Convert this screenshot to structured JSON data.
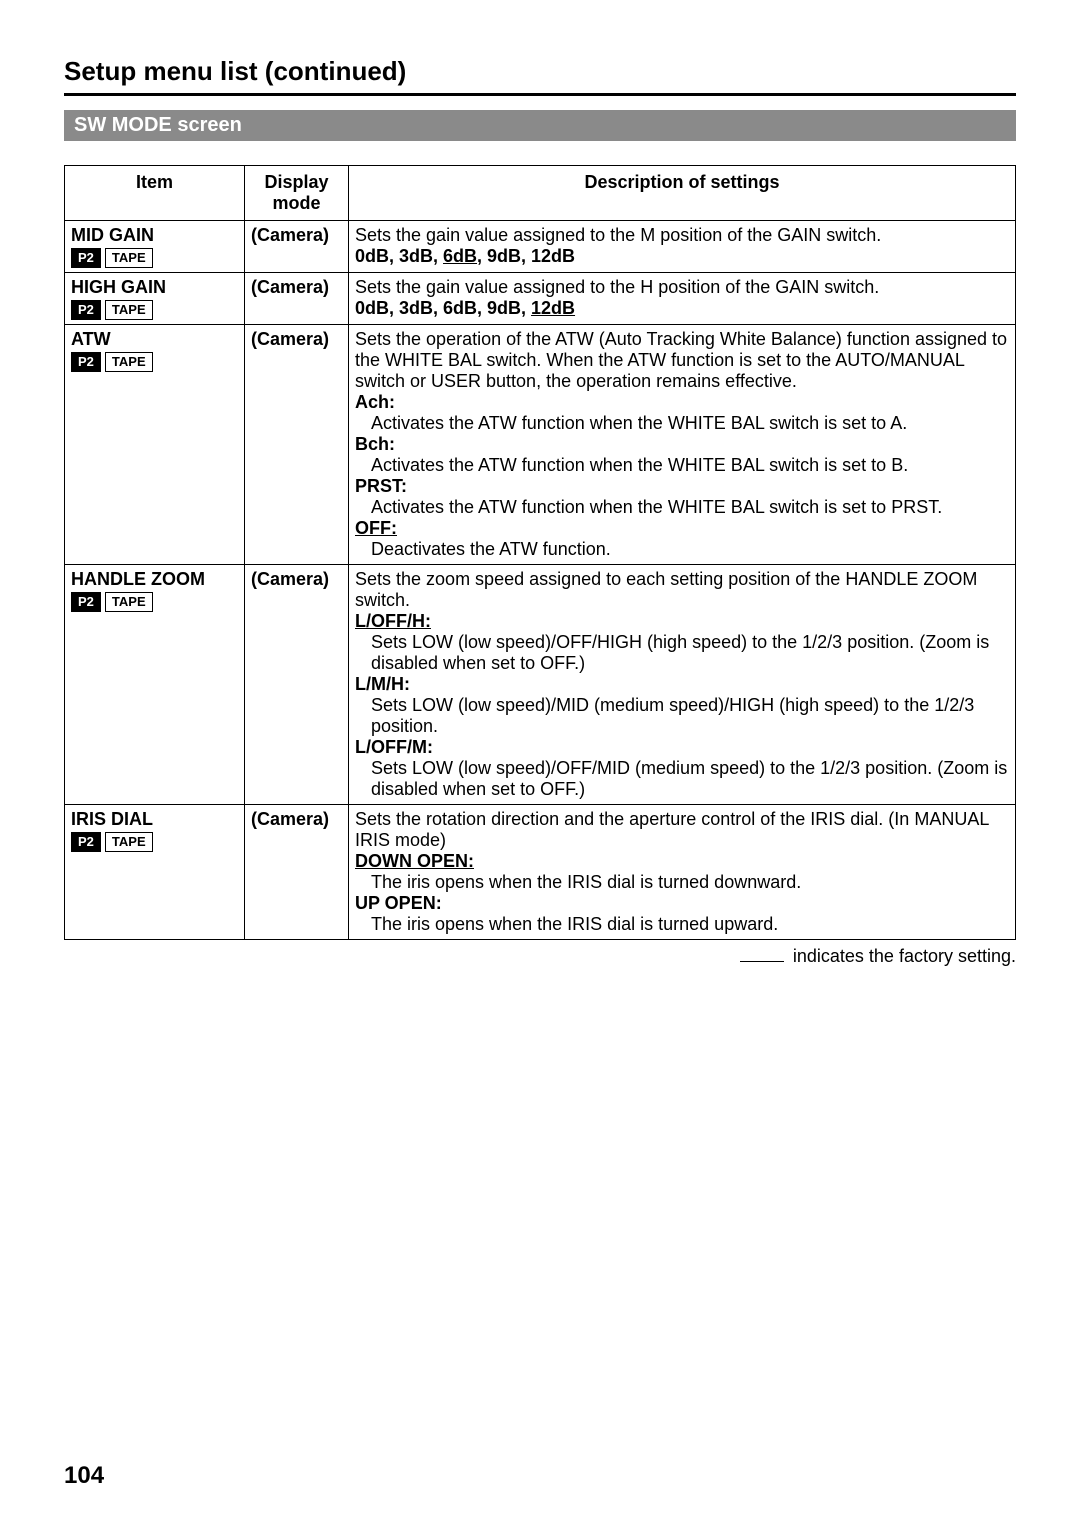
{
  "page": {
    "title": "Setup menu list (continued)",
    "section_header": "SW MODE screen",
    "page_number": "104",
    "footnote_text": " indicates the factory setting."
  },
  "table": {
    "headers": {
      "item": "Item",
      "mode": "Display mode",
      "desc": "Description of settings"
    },
    "badges": {
      "p2": "P2",
      "tape": "TAPE"
    },
    "rows": [
      {
        "item": "MID GAIN",
        "mode": "(Camera)",
        "lines": [
          {
            "t": "Sets the gain value assigned to the M position of the GAIN switch."
          },
          {
            "opts": [
              {
                "t": "0dB, 3dB, ",
                "b": true
              },
              {
                "t": "6dB",
                "b": true,
                "u": true
              },
              {
                "t": ", 9dB, 12dB",
                "b": true
              }
            ]
          }
        ]
      },
      {
        "item": "HIGH GAIN",
        "mode": "(Camera)",
        "lines": [
          {
            "t": "Sets the gain value assigned to the H position of the GAIN switch."
          },
          {
            "opts": [
              {
                "t": "0dB, 3dB, 6dB, 9dB, ",
                "b": true
              },
              {
                "t": "12dB",
                "b": true,
                "u": true
              }
            ]
          }
        ]
      },
      {
        "item": "ATW",
        "mode": "(Camera)",
        "lines": [
          {
            "t": "Sets the operation of the ATW (Auto Tracking White Balance) function assigned to the WHITE BAL switch. When the ATW function is set to the AUTO/MANUAL switch or USER button, the operation remains effective."
          },
          {
            "t": "Ach:",
            "b": true
          },
          {
            "t": "Activates the ATW function when the WHITE BAL switch is set to A.",
            "i": 1
          },
          {
            "t": "Bch:",
            "b": true
          },
          {
            "t": "Activates the ATW function when the WHITE BAL switch is set to B.",
            "i": 1
          },
          {
            "t": "PRST:",
            "b": true
          },
          {
            "t": "Activates the ATW function when the WHITE BAL switch is set to PRST.",
            "i": 1
          },
          {
            "t": "OFF:",
            "b": true,
            "u": true
          },
          {
            "t": "Deactivates the ATW function.",
            "i": 1
          }
        ]
      },
      {
        "item": "HANDLE ZOOM",
        "mode": "(Camera)",
        "lines": [
          {
            "t": "Sets the zoom speed assigned to each setting position of the HANDLE ZOOM switch."
          },
          {
            "t": "L/OFF/H:",
            "b": true,
            "u": true
          },
          {
            "t": "Sets LOW (low speed)/OFF/HIGH (high speed) to the 1/2/3 position. (Zoom is disabled when set to OFF.)",
            "i": 1
          },
          {
            "t": "L/M/H:",
            "b": true
          },
          {
            "t": "Sets LOW (low speed)/MID (medium speed)/HIGH (high speed) to the 1/2/3 position.",
            "i": 1
          },
          {
            "t": "L/OFF/M:",
            "b": true
          },
          {
            "t": "Sets LOW (low speed)/OFF/MID (medium speed) to the 1/2/3 position. (Zoom is disabled when set to OFF.)",
            "i": 1
          }
        ]
      },
      {
        "item": "IRIS DIAL",
        "mode": "(Camera)",
        "lines": [
          {
            "t": "Sets the rotation direction and the aperture control of the IRIS dial. (In MANUAL IRIS mode)"
          },
          {
            "t": "DOWN OPEN:",
            "b": true,
            "u": true
          },
          {
            "t": "The iris opens when the IRIS dial is turned downward.",
            "i": 1
          },
          {
            "t": "UP OPEN:",
            "b": true
          },
          {
            "t": "The iris opens when the IRIS dial is turned upward.",
            "i": 1
          }
        ]
      }
    ]
  }
}
